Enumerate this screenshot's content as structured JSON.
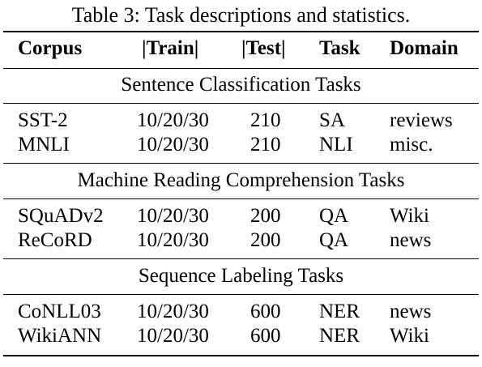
{
  "caption": "Table 3: Task descriptions and statistics.",
  "columns": {
    "corpus": "Corpus",
    "train": "|Train|",
    "test": "|Test|",
    "task": "Task",
    "domain": "Domain"
  },
  "sections": [
    {
      "title": "Sentence Classification Tasks",
      "rows": [
        {
          "corpus": "SST-2",
          "train": "10/20/30",
          "test": "210",
          "task": "SA",
          "domain": "reviews"
        },
        {
          "corpus": "MNLI",
          "train": "10/20/30",
          "test": "210",
          "task": "NLI",
          "domain": "misc."
        }
      ]
    },
    {
      "title": "Machine Reading Comprehension Tasks",
      "rows": [
        {
          "corpus": "SQuADv2",
          "train": "10/20/30",
          "test": "200",
          "task": "QA",
          "domain": "Wiki"
        },
        {
          "corpus": "ReCoRD",
          "train": "10/20/30",
          "test": "200",
          "task": "QA",
          "domain": "news"
        }
      ]
    },
    {
      "title": "Sequence Labeling Tasks",
      "rows": [
        {
          "corpus": "CoNLL03",
          "train": "10/20/30",
          "test": "600",
          "task": "NER",
          "domain": "news"
        },
        {
          "corpus": "WikiANN",
          "train": "10/20/30",
          "test": "600",
          "task": "NER",
          "domain": "Wiki"
        }
      ]
    }
  ]
}
